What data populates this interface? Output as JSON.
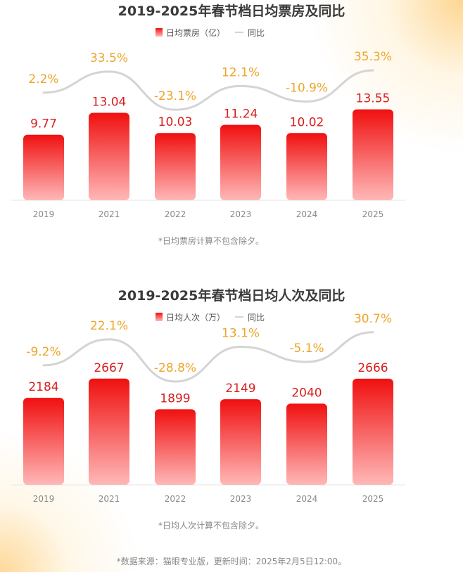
{
  "chart_data": [
    {
      "type": "bar",
      "title": "2019-2025年春节档日均票房及同比",
      "categories": [
        "2019",
        "2021",
        "2022",
        "2023",
        "2024",
        "2025"
      ],
      "series": [
        {
          "name": "日均票房（亿）",
          "type": "bar",
          "values": [
            9.77,
            13.04,
            10.03,
            11.24,
            10.02,
            13.55
          ],
          "labels": [
            "9.77",
            "13.04",
            "10.03",
            "11.24",
            "10.02",
            "13.55"
          ]
        },
        {
          "name": "同比",
          "type": "line",
          "values": [
            2.2,
            33.5,
            -23.1,
            12.1,
            -10.9,
            35.3
          ],
          "labels": [
            "2.2%",
            "33.5%",
            "-23.1%",
            "12.1%",
            "-10.9%",
            "35.3%"
          ]
        }
      ],
      "legend_position": "top",
      "grid": false,
      "note": "*日均票房计算不包含除夕。"
    },
    {
      "type": "bar",
      "title": "2019-2025年春节档日均人次及同比",
      "categories": [
        "2019",
        "2021",
        "2022",
        "2023",
        "2024",
        "2025"
      ],
      "series": [
        {
          "name": "日均人次（万）",
          "type": "bar",
          "values": [
            2184,
            2667,
            1899,
            2149,
            2040,
            2666
          ],
          "labels": [
            "2184",
            "2667",
            "1899",
            "2149",
            "2040",
            "2666"
          ]
        },
        {
          "name": "同比",
          "type": "line",
          "values": [
            -9.2,
            22.1,
            -28.8,
            13.1,
            -5.1,
            30.7
          ],
          "labels": [
            "-9.2%",
            "22.1%",
            "-28.8%",
            "13.1%",
            "-5.1%",
            "30.7%"
          ]
        }
      ],
      "legend_position": "top",
      "grid": false,
      "note": "*日均人次计算不包含除夕。"
    }
  ],
  "colors": {
    "bar_top": "#f01010",
    "bar_bottom": "#ffb4b4",
    "line": "#d4d4d4",
    "value_label": "#d81e1e",
    "pct_label": "#eda52a"
  },
  "footer": "*数据来源：猫眼专业版，更新时间：2025年2月5日12:00。"
}
